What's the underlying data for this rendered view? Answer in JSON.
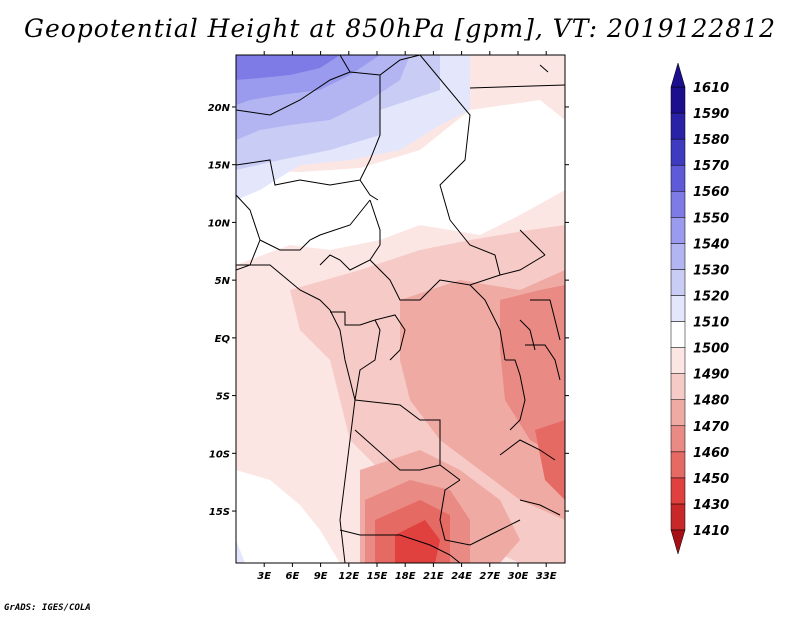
{
  "title": "Geopotential Height at 850hPa [gpm], VT: 2019122812",
  "credit": "GrADS: IGES/COLA",
  "map": {
    "lat_labels": [
      "20N",
      "15N",
      "10N",
      "5N",
      "EQ",
      "5S",
      "10S",
      "15S"
    ],
    "lon_labels": [
      "3E",
      "6E",
      "9E",
      "12E",
      "15E",
      "18E",
      "21E",
      "24E",
      "27E",
      "30E",
      "33E"
    ],
    "lat_range": [
      -19.5,
      24.5
    ],
    "lon_range": [
      0,
      35
    ]
  },
  "colorbar": {
    "levels": [
      "1410",
      "1430",
      "1450",
      "1460",
      "1470",
      "1480",
      "1490",
      "1500",
      "1510",
      "1520",
      "1530",
      "1540",
      "1550",
      "1560",
      "1570",
      "1580",
      "1590",
      "1610"
    ],
    "colors": [
      "#a50f15",
      "#c8282a",
      "#e0403e",
      "#e66a64",
      "#ea8a84",
      "#f0aaa4",
      "#f6cac6",
      "#fbe6e4",
      "#ffffff",
      "#e4e6fb",
      "#c9ccf5",
      "#b3b5f2",
      "#9a9aee",
      "#7e7be6",
      "#5f5bd8",
      "#3f3bc0",
      "#2a22a6",
      "#1b0f8e"
    ]
  }
}
